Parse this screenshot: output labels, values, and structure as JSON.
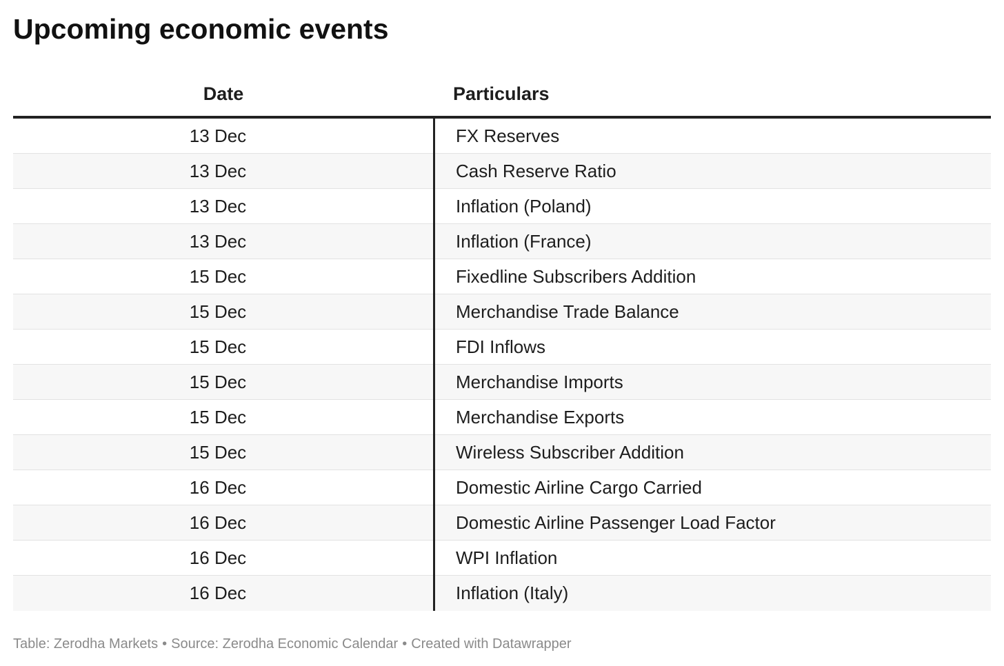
{
  "title": "Upcoming economic events",
  "chart_data": {
    "type": "table",
    "columns": [
      "Date",
      "Particulars"
    ],
    "rows": [
      {
        "date": "13 Dec",
        "particular": "FX Reserves"
      },
      {
        "date": "13 Dec",
        "particular": "Cash Reserve Ratio"
      },
      {
        "date": "13 Dec",
        "particular": "Inflation (Poland)"
      },
      {
        "date": "13 Dec",
        "particular": "Inflation (France)"
      },
      {
        "date": "15 Dec",
        "particular": "Fixedline Subscribers Addition"
      },
      {
        "date": "15 Dec",
        "particular": "Merchandise Trade Balance"
      },
      {
        "date": "15 Dec",
        "particular": "FDI Inflows"
      },
      {
        "date": "15 Dec",
        "particular": "Merchandise Imports"
      },
      {
        "date": "15 Dec",
        "particular": "Merchandise Exports"
      },
      {
        "date": "15 Dec",
        "particular": "Wireless Subscriber Addition"
      },
      {
        "date": "16 Dec",
        "particular": "Domestic Airline Cargo Carried"
      },
      {
        "date": "16 Dec",
        "particular": "Domestic Airline Passenger Load Factor"
      },
      {
        "date": "16 Dec",
        "particular": "WPI Inflation"
      },
      {
        "date": "16 Dec",
        "particular": "Inflation (Italy)"
      }
    ]
  },
  "footer": {
    "table_credit": "Table: Zerodha Markets",
    "separator": "•",
    "source": "Source: Zerodha Economic Calendar",
    "created_with": "Created with Datawrapper"
  }
}
